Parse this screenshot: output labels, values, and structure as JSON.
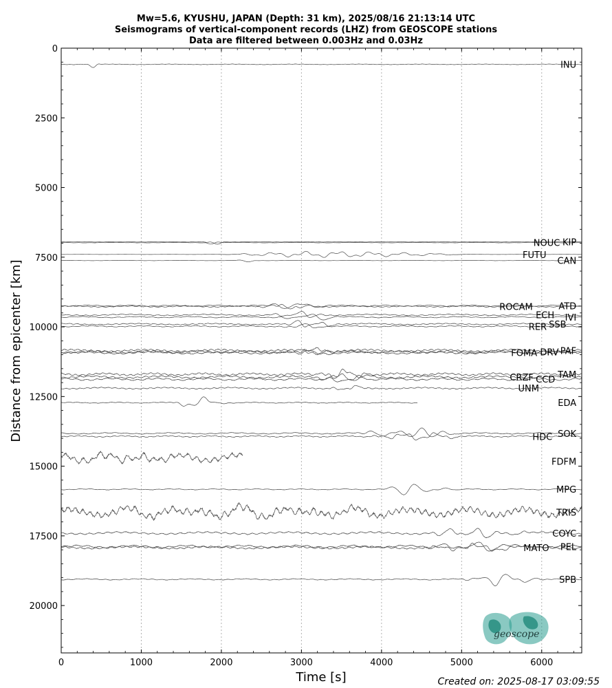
{
  "chart_data": {
    "type": "line",
    "title_lines": [
      "Mw=5.6, KYUSHU, JAPAN (Depth: 31 km), 2025/08/16 21:13:14 UTC",
      "Seismograms of vertical-component records (LHZ) from GEOSCOPE stations",
      "Data are filtered between 0.003Hz and 0.03Hz"
    ],
    "xlabel": "Time [s]",
    "ylabel": "Distance from epicenter [km]",
    "xlim": [
      0,
      6500
    ],
    "ylim": [
      21700,
      0
    ],
    "y_inverted": true,
    "x_ticks": [
      0,
      1000,
      2000,
      3000,
      4000,
      5000,
      6000
    ],
    "y_ticks": [
      0,
      2500,
      5000,
      7500,
      10000,
      12500,
      15000,
      17500,
      20000
    ],
    "x_grid": "dotted vertical lines at major x ticks",
    "trace_color": "#4a4a4a",
    "stations": [
      {
        "name": "INU",
        "distance": 580,
        "label_x": 6450,
        "label_y": 580,
        "t_start": 0,
        "t_end": 6500,
        "arrival": 220,
        "duration": 350,
        "amp": 250,
        "noise": 15
      },
      {
        "name": "KIP",
        "distance": 6950,
        "label_x": 6450,
        "label_y": 6950,
        "t_start": 0,
        "t_end": 6500,
        "arrival": 1760,
        "duration": 400,
        "amp": 180,
        "noise": 10
      },
      {
        "name": "NOUC",
        "distance": 6980,
        "label_x": 6245,
        "label_y": 6980,
        "t_start": 0,
        "t_end": 6500,
        "arrival": 1800,
        "duration": 300,
        "amp": 80,
        "noise": 8
      },
      {
        "name": "FUTU",
        "distance": 7400,
        "label_x": 6075,
        "label_y": 7400,
        "t_start": 0,
        "t_end": 6500,
        "arrival": 2000,
        "duration": 4200,
        "amp": 160,
        "noise": 5
      },
      {
        "name": "CAN",
        "distance": 7620,
        "label_x": 6450,
        "label_y": 7620,
        "t_start": 0,
        "t_end": 6500,
        "arrival": 2100,
        "duration": 500,
        "amp": 90,
        "noise": 8
      },
      {
        "name": "ATD",
        "distance": 9240,
        "label_x": 6450,
        "label_y": 9240,
        "t_start": 0,
        "t_end": 6500,
        "arrival": 2500,
        "duration": 1200,
        "amp": 180,
        "noise": 30
      },
      {
        "name": "ROCAM",
        "distance": 9270,
        "label_x": 5905,
        "label_y": 9270,
        "t_start": 0,
        "t_end": 6500,
        "arrival": 2450,
        "duration": 1100,
        "amp": 170,
        "noise": 30
      },
      {
        "name": "ECH",
        "distance": 9570,
        "label_x": 6175,
        "label_y": 9570,
        "t_start": 0,
        "t_end": 6500,
        "arrival": 2600,
        "duration": 1000,
        "amp": 200,
        "noise": 35
      },
      {
        "name": "IVI",
        "distance": 9650,
        "label_x": 6450,
        "label_y": 9650,
        "t_start": 0,
        "t_end": 6500,
        "arrival": 2700,
        "duration": 1100,
        "amp": 200,
        "noise": 30
      },
      {
        "name": "SSB",
        "distance": 9900,
        "label_x": 6325,
        "label_y": 9900,
        "t_start": 0,
        "t_end": 6500,
        "arrival": 2700,
        "duration": 1100,
        "amp": 190,
        "noise": 35
      },
      {
        "name": "RER",
        "distance": 9980,
        "label_x": 6080,
        "label_y": 9980,
        "t_start": 0,
        "t_end": 6500,
        "arrival": 2650,
        "duration": 1000,
        "amp": 130,
        "noise": 30
      },
      {
        "name": "PAF",
        "distance": 10850,
        "label_x": 6450,
        "label_y": 10850,
        "t_start": 0,
        "t_end": 6500,
        "arrival": 2800,
        "duration": 900,
        "amp": 180,
        "noise": 60
      },
      {
        "name": "DRV",
        "distance": 10900,
        "label_x": 6230,
        "label_y": 10900,
        "t_start": 0,
        "t_end": 6500,
        "arrival": 2850,
        "duration": 900,
        "amp": 150,
        "noise": 60
      },
      {
        "name": "FOMA",
        "distance": 10930,
        "label_x": 5960,
        "label_y": 10930,
        "t_start": 0,
        "t_end": 6500,
        "arrival": 2800,
        "duration": 900,
        "amp": 140,
        "noise": 55
      },
      {
        "name": "TAM",
        "distance": 11700,
        "label_x": 6450,
        "label_y": 11700,
        "t_start": 0,
        "t_end": 6500,
        "arrival": 3100,
        "duration": 1200,
        "amp": 250,
        "noise": 60
      },
      {
        "name": "CRZF",
        "distance": 11800,
        "label_x": 5915,
        "label_y": 11800,
        "t_start": 0,
        "t_end": 6500,
        "arrival": 3150,
        "duration": 1100,
        "amp": 230,
        "noise": 60
      },
      {
        "name": "CCD",
        "distance": 11880,
        "label_x": 6185,
        "label_y": 11880,
        "t_start": 0,
        "t_end": 6500,
        "arrival": 3200,
        "duration": 1000,
        "amp": 200,
        "noise": 55
      },
      {
        "name": "UNM",
        "distance": 12200,
        "label_x": 5985,
        "label_y": 12200,
        "t_start": 0,
        "t_end": 6500,
        "arrival": 3300,
        "duration": 900,
        "amp": 120,
        "noise": 40
      },
      {
        "name": "EDA",
        "distance": 12720,
        "label_x": 6450,
        "label_y": 12720,
        "t_start": 0,
        "t_end": 4450,
        "arrival": 1400,
        "duration": 900,
        "amp": 300,
        "noise": 25
      },
      {
        "name": "SOK",
        "distance": 13820,
        "label_x": 6450,
        "label_y": 13820,
        "t_start": 0,
        "t_end": 6500,
        "arrival": 3700,
        "duration": 1800,
        "amp": 280,
        "noise": 35
      },
      {
        "name": "HDC",
        "distance": 13930,
        "label_x": 6150,
        "label_y": 13930,
        "t_start": 0,
        "t_end": 6500,
        "arrival": 3800,
        "duration": 1800,
        "amp": 200,
        "noise": 35
      },
      {
        "name": "FDFM",
        "distance": 14700,
        "label_x": 6450,
        "label_y": 14830,
        "t_start": 0,
        "t_end": 2270,
        "arrival": 0,
        "duration": 2270,
        "amp": 320,
        "noise": 200
      },
      {
        "name": "MPG",
        "distance": 15830,
        "label_x": 6450,
        "label_y": 15830,
        "t_start": 0,
        "t_end": 6500,
        "arrival": 4000,
        "duration": 1300,
        "amp": 300,
        "noise": 25
      },
      {
        "name": "TRIS",
        "distance": 16650,
        "label_x": 6450,
        "label_y": 16650,
        "t_start": 0,
        "t_end": 6500,
        "arrival": 0,
        "duration": 6500,
        "amp": 240,
        "noise": 220
      },
      {
        "name": "COYC",
        "distance": 17400,
        "label_x": 6450,
        "label_y": 17400,
        "t_start": 0,
        "t_end": 6500,
        "arrival": 4500,
        "duration": 1900,
        "amp": 250,
        "noise": 60
      },
      {
        "name": "PEL",
        "distance": 17880,
        "label_x": 6450,
        "label_y": 17880,
        "t_start": 0,
        "t_end": 6500,
        "arrival": 4500,
        "duration": 1800,
        "amp": 260,
        "noise": 60
      },
      {
        "name": "MATO",
        "distance": 17920,
        "label_x": 6110,
        "label_y": 17920,
        "t_start": 0,
        "t_end": 6500,
        "arrival": 4550,
        "duration": 1800,
        "amp": 230,
        "noise": 60
      },
      {
        "name": "SPB",
        "distance": 19060,
        "label_x": 6450,
        "label_y": 19060,
        "t_start": 0,
        "t_end": 6500,
        "arrival": 5000,
        "duration": 1400,
        "amp": 320,
        "noise": 30
      }
    ]
  },
  "footer": {
    "created_on": "Created on: 2025-08-17 03:09:55"
  },
  "logo": {
    "text": "geoscope",
    "color": "#2a9d8f"
  }
}
